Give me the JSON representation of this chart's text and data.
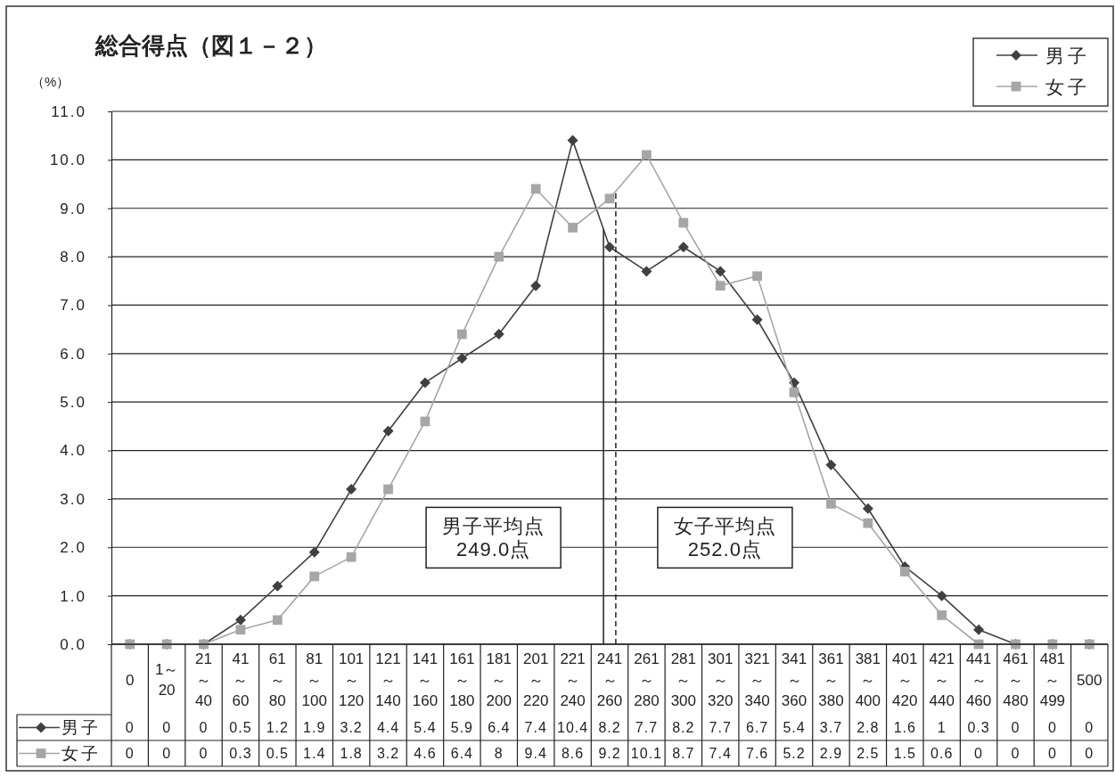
{
  "chart_data": {
    "type": "line",
    "title": "総合得点（図１－２）",
    "ylabel": "（%）",
    "categories": [
      "0",
      "1～20",
      "21～40",
      "41～60",
      "61～80",
      "81～100",
      "101～120",
      "121～140",
      "141～160",
      "161～180",
      "181～200",
      "201～220",
      "221～240",
      "241～260",
      "261～280",
      "281～300",
      "301～320",
      "321～340",
      "341～360",
      "361～380",
      "381～400",
      "401～420",
      "421～440",
      "441～460",
      "461～480",
      "481～499",
      "500"
    ],
    "series": [
      {
        "name": "男子",
        "color": "#404040",
        "marker": "diamond",
        "values": [
          0,
          0,
          0,
          0.5,
          1.2,
          1.9,
          3.2,
          4.4,
          5.4,
          5.9,
          6.4,
          7.4,
          10.4,
          8.2,
          7.7,
          8.2,
          7.7,
          6.7,
          5.4,
          3.7,
          2.8,
          1.6,
          1,
          0.3,
          0,
          0,
          0
        ]
      },
      {
        "name": "女子",
        "color": "#a6a6a6",
        "marker": "square",
        "values": [
          0,
          0,
          0,
          0.3,
          0.5,
          1.4,
          1.8,
          3.2,
          4.6,
          6.4,
          8,
          9.4,
          8.6,
          9.2,
          10.1,
          8.7,
          7.4,
          7.6,
          5.2,
          2.9,
          2.5,
          1.5,
          0.6,
          0,
          0,
          0,
          0
        ]
      }
    ],
    "ylim": [
      0,
      11
    ],
    "yticks": [
      {
        "value": 0,
        "label": "0.0"
      },
      {
        "value": 1,
        "label": "1.0"
      },
      {
        "value": 2,
        "label": "2.0"
      },
      {
        "value": 3,
        "label": "3.0"
      },
      {
        "value": 4,
        "label": "4.0"
      },
      {
        "value": 5,
        "label": "5.0"
      },
      {
        "value": 6,
        "label": "6.0"
      },
      {
        "value": 7,
        "label": "7.0"
      },
      {
        "value": 8,
        "label": "8.0"
      },
      {
        "value": 9,
        "label": "9.0"
      },
      {
        "value": 10,
        "label": "10.0"
      },
      {
        "value": 11,
        "label": "11.0"
      }
    ],
    "grid": "y",
    "legend": "top right",
    "data_labels": true,
    "ref_lines": [
      {
        "axis": "x",
        "value": "241～260",
        "label": "男子平均点\n249.0点",
        "line_style": "solid"
      },
      {
        "axis": "x",
        "value": "241～260",
        "label": "女子平均点\n252.0点",
        "line_style": "dashed"
      }
    ]
  }
}
